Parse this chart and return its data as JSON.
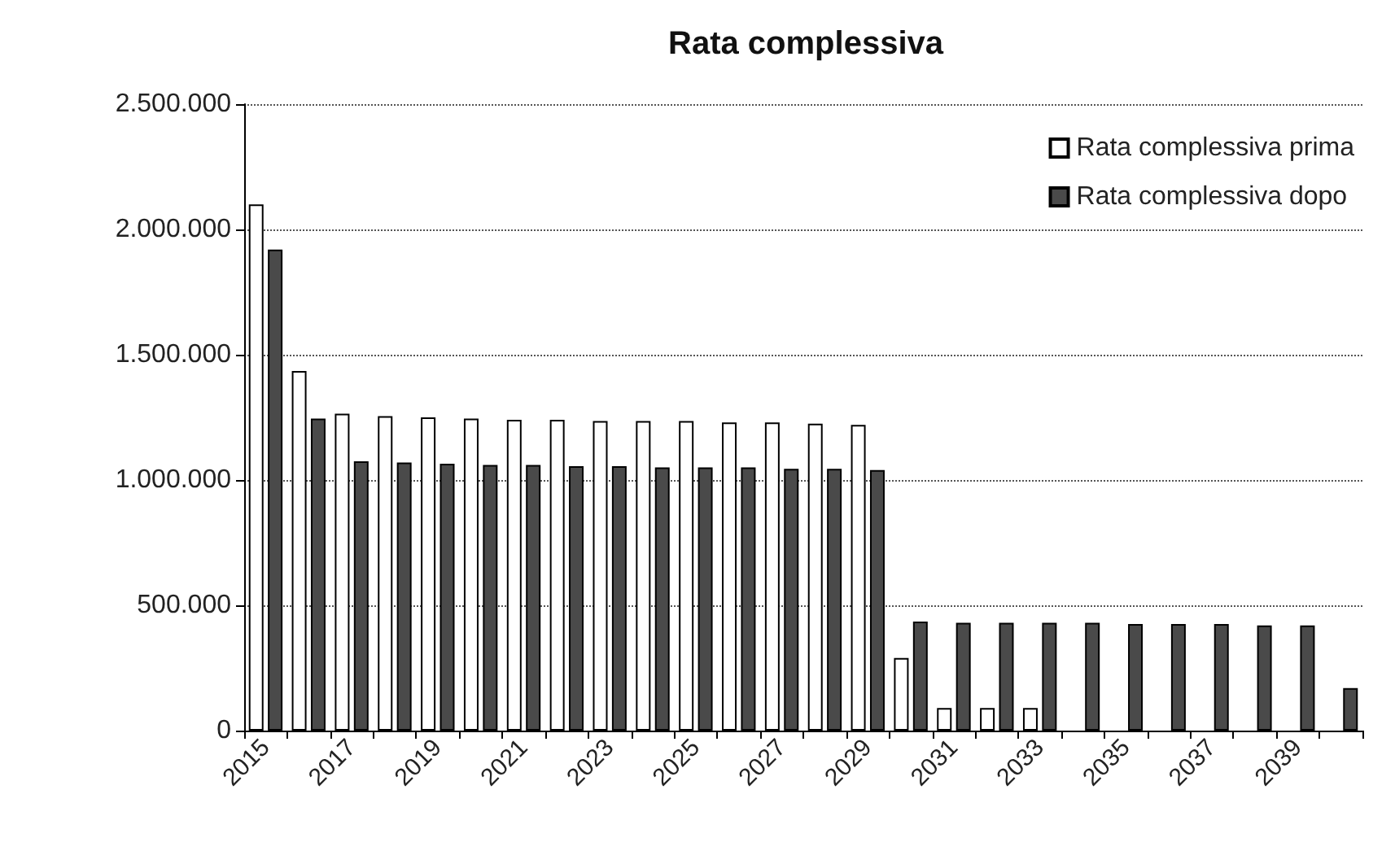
{
  "chart_data": {
    "type": "bar",
    "title": "Rata complessiva",
    "categories": [
      "2015",
      null,
      "2017",
      null,
      "2019",
      null,
      "2021",
      null,
      "2023",
      null,
      "2025",
      null,
      "2027",
      null,
      "2029",
      null,
      "2031",
      null,
      "2033",
      null,
      "2035",
      null,
      "2037",
      null,
      "2039",
      null
    ],
    "series": [
      {
        "name": "Rata complessiva prima",
        "color": "#ffffff",
        "values": [
          2100000,
          1435000,
          1265000,
          1255000,
          1250000,
          1245000,
          1240000,
          1240000,
          1235000,
          1235000,
          1235000,
          1230000,
          1230000,
          1225000,
          1220000,
          290000,
          90000,
          90000,
          90000,
          null,
          null,
          null,
          null,
          null,
          null,
          null
        ]
      },
      {
        "name": "Rata complessiva dopo",
        "color": "#4a4a4a",
        "values": [
          1920000,
          1245000,
          1075000,
          1070000,
          1065000,
          1060000,
          1060000,
          1055000,
          1055000,
          1050000,
          1050000,
          1050000,
          1045000,
          1045000,
          1040000,
          435000,
          430000,
          430000,
          430000,
          430000,
          425000,
          425000,
          425000,
          420000,
          420000,
          170000
        ]
      }
    ],
    "ylim": [
      0,
      2500000
    ],
    "yticks": [
      0,
      {
        "value": 500000,
        "label": "500.000"
      },
      {
        "value": 1000000,
        "label": "1.000.000"
      },
      {
        "value": 1500000,
        "label": "1.500.000"
      },
      {
        "value": 2000000,
        "label": "2.000.000"
      },
      {
        "value": 2500000,
        "label": "2.500.000"
      }
    ],
    "grid": "y",
    "legend": "top right"
  }
}
